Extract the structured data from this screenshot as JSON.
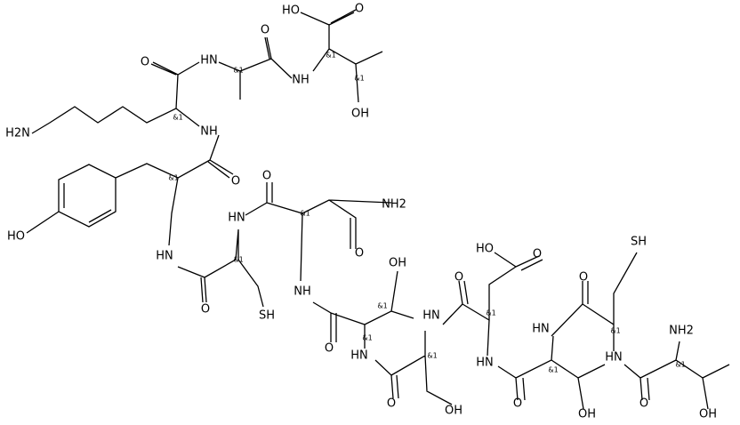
{
  "labels": [
    "HO",
    "O",
    "&1",
    "NH",
    "&1",
    "OH",
    "O",
    "HN",
    "&1",
    "O",
    "&1",
    "NH",
    "H2N",
    "O",
    "&1",
    "O",
    "NH2",
    "HN",
    "&1",
    "HO",
    "HN",
    "&1",
    "O",
    "O",
    "SH",
    "NH",
    "OH",
    "HO",
    "O",
    "O",
    "O",
    "SH",
    "&1",
    "HN",
    "&1",
    "O",
    "&1",
    "HN",
    "&1",
    "NH2",
    "HN",
    "&1",
    "HN",
    "&1",
    "HN",
    "&1",
    "O",
    "OH",
    "O",
    "OH",
    "O",
    "OH"
  ]
}
